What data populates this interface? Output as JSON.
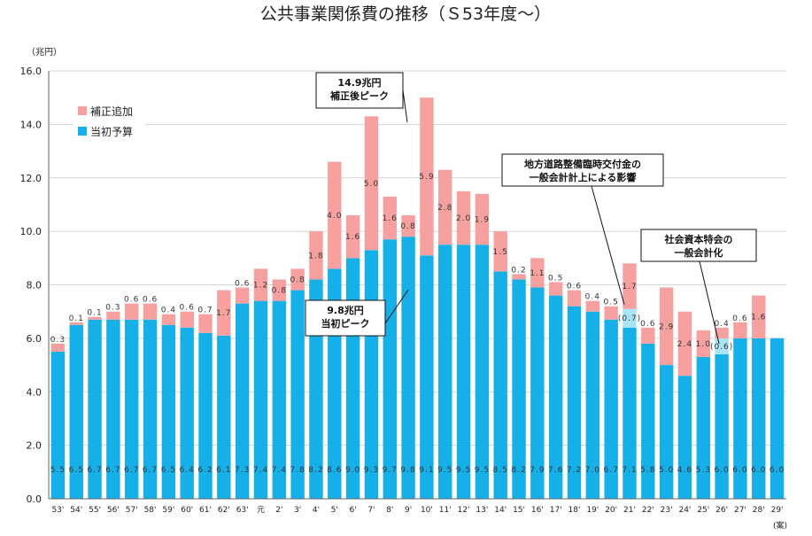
{
  "chart_data": {
    "type": "bar",
    "stacked": true,
    "title": "公共事業関係費の推移（Ｓ53年度～）",
    "ylabel": "（兆円）",
    "ylim": [
      0,
      16
    ],
    "yticks": [
      "0.0",
      "2.0",
      "4.0",
      "6.0",
      "8.0",
      "10.0",
      "12.0",
      "14.0",
      "16.0"
    ],
    "grid": true,
    "legend_position": "top-left",
    "x_note": "(案)",
    "categories": [
      "53'",
      "54'",
      "55'",
      "56'",
      "57'",
      "58'",
      "59'",
      "60'",
      "61'",
      "62'",
      "63'",
      "元",
      "2'",
      "3'",
      "4'",
      "5'",
      "6'",
      "7'",
      "8'",
      "9'",
      "10'",
      "11'",
      "12'",
      "13'",
      "14'",
      "15'",
      "16'",
      "17'",
      "18'",
      "19'",
      "20'",
      "21'",
      "22'",
      "23'",
      "24'",
      "25'",
      "26'",
      "27'",
      "28'",
      "29'"
    ],
    "series": [
      {
        "name": "当初予算",
        "color": "#15B0E8",
        "values": [
          5.5,
          6.5,
          6.7,
          6.7,
          6.7,
          6.7,
          6.5,
          6.4,
          6.2,
          6.1,
          7.3,
          7.4,
          7.4,
          7.8,
          8.2,
          8.6,
          9.0,
          9.3,
          9.7,
          9.8,
          9.1,
          9.5,
          9.5,
          9.5,
          8.5,
          8.2,
          7.9,
          7.6,
          7.2,
          7.0,
          6.7,
          7.1,
          5.8,
          5.0,
          4.6,
          5.3,
          6.0,
          6.0,
          6.0,
          6.0
        ]
      },
      {
        "name": "補正追加",
        "color": "#F7A0A0",
        "values": [
          0.3,
          0.1,
          0.1,
          0.3,
          0.6,
          0.6,
          0.4,
          0.6,
          0.7,
          1.7,
          0.6,
          1.2,
          0.8,
          0.8,
          1.8,
          4.0,
          1.6,
          5.0,
          1.6,
          0.8,
          5.9,
          2.8,
          2.0,
          1.9,
          1.5,
          0.2,
          1.1,
          0.5,
          0.6,
          0.4,
          0.5,
          1.7,
          0.6,
          2.9,
          2.4,
          1.0,
          0.4,
          0.6,
          1.6,
          null
        ]
      }
    ],
    "special_segments": [
      {
        "category": "21'",
        "value": 0.7,
        "label": "(0.7)",
        "color": "#A8E6F7",
        "note": "地方道路整備臨時交付金の一般会計計上による影響"
      },
      {
        "category": "26'",
        "value": 0.6,
        "label": "(0.6)",
        "color": "#A8E6F7",
        "note": "社会資本特会の一般会計化"
      }
    ],
    "annotations": [
      {
        "id": "peak-supplementary",
        "lines": [
          "14.9兆円",
          "補正後ピーク"
        ],
        "target": "10'"
      },
      {
        "id": "peak-initial",
        "lines": [
          "9.8兆円",
          "当初ピーク"
        ],
        "target": "9'"
      },
      {
        "id": "road-fund",
        "lines": [
          "地方道路整備臨時交付金の",
          "一般会計計上による影響"
        ],
        "target": "21'"
      },
      {
        "id": "special-account",
        "lines": [
          "社会資本特会の",
          "一般会計化"
        ],
        "target": "26'"
      }
    ]
  }
}
